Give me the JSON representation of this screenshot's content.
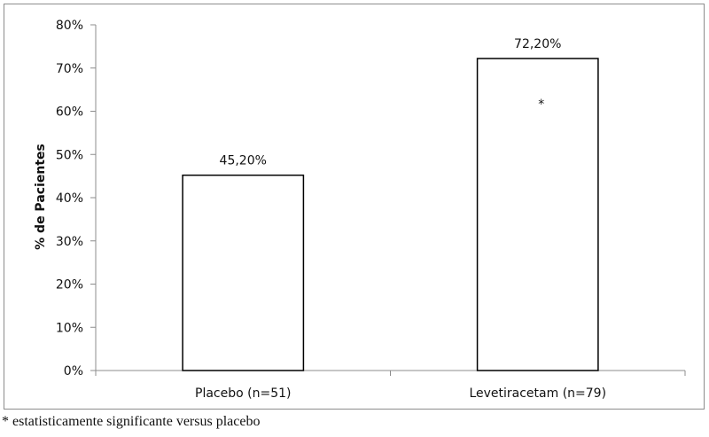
{
  "chart_data": {
    "type": "bar",
    "categories": [
      "Placebo (n=51)",
      "Levetiracetam (n=79)"
    ],
    "values": [
      45.2,
      72.2
    ],
    "value_labels": [
      "45,20%",
      "72,20%"
    ],
    "annotations": [
      "",
      "*"
    ],
    "title": "",
    "xlabel": "",
    "ylabel": "% de Pacientes",
    "ylim": [
      0,
      80
    ],
    "yticks": [
      0,
      10,
      20,
      30,
      40,
      50,
      60,
      70,
      80
    ],
    "ytick_labels": [
      "0%",
      "10%",
      "20%",
      "30%",
      "40%",
      "50%",
      "60%",
      "70%",
      "80%"
    ],
    "grid": false,
    "legend": "none",
    "bar_fill": "#ffffff",
    "bar_stroke": "#000000"
  },
  "footnote": "* estatisticamente significante versus placebo"
}
